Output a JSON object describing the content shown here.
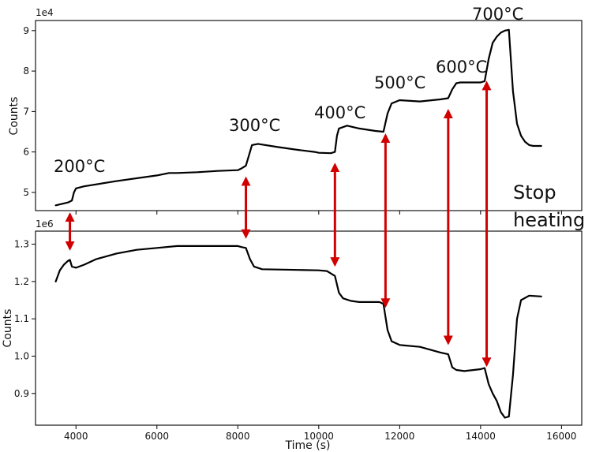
{
  "chart_data": [
    {
      "type": "line",
      "title": "",
      "xlabel": "",
      "ylabel": "Counts",
      "offset_label": "1e4",
      "xlim": [
        3000,
        16500
      ],
      "ylim": [
        4.55,
        9.25
      ],
      "yticks": [
        5,
        6,
        7,
        8,
        9
      ],
      "ytick_labels": [
        "5",
        "6",
        "7",
        "8",
        "9"
      ],
      "series": [
        {
          "x": [
            3500,
            3800,
            3900,
            3950,
            4000,
            4200,
            5000,
            6000,
            6300,
            6500,
            7000,
            7500,
            8000,
            8100,
            8200,
            8300,
            8350,
            8500,
            9000,
            9500,
            9900,
            10000,
            10300,
            10400,
            10450,
            10500,
            10700,
            11000,
            11400,
            11600,
            11700,
            11800,
            12000,
            12500,
            13000,
            13200,
            13300,
            13400,
            13500,
            14000,
            14100,
            14200,
            14300,
            14400,
            14500,
            14600,
            14700,
            14800,
            14900,
            15000,
            15100,
            15200,
            15300,
            15500
          ],
          "y": [
            4.68,
            4.75,
            4.8,
            5.0,
            5.1,
            5.15,
            5.28,
            5.42,
            5.48,
            5.48,
            5.5,
            5.53,
            5.55,
            5.6,
            5.66,
            6.0,
            6.17,
            6.2,
            6.12,
            6.05,
            6.0,
            5.98,
            5.97,
            6.0,
            6.4,
            6.58,
            6.65,
            6.58,
            6.52,
            6.5,
            6.95,
            7.2,
            7.28,
            7.25,
            7.3,
            7.33,
            7.55,
            7.7,
            7.72,
            7.72,
            7.75,
            8.3,
            8.7,
            8.85,
            8.95,
            9.0,
            9.02,
            7.5,
            6.7,
            6.4,
            6.25,
            6.17,
            6.15,
            6.15
          ]
        }
      ],
      "annotations": [
        "200°C",
        "300°C",
        "400°C",
        "500°C",
        "600°C",
        "700°C"
      ]
    },
    {
      "type": "line",
      "title": "",
      "xlabel": "Time (s)",
      "ylabel": "Counts",
      "offset_label": "1e6",
      "xlim": [
        3000,
        16500
      ],
      "ylim": [
        0.815,
        1.335
      ],
      "yticks": [
        0.9,
        1.0,
        1.1,
        1.2,
        1.3
      ],
      "ytick_labels": [
        "0.9",
        "1.0",
        "1.1",
        "1.2",
        "1.3"
      ],
      "xticks": [
        4000,
        6000,
        8000,
        10000,
        12000,
        14000,
        16000
      ],
      "xtick_labels": [
        "4000",
        "6000",
        "8000",
        "10000",
        "12000",
        "14000",
        "16000"
      ],
      "series": [
        {
          "x": [
            3500,
            3600,
            3700,
            3800,
            3850,
            3900,
            4000,
            4200,
            4500,
            5000,
            5500,
            6000,
            6500,
            7000,
            7500,
            8000,
            8100,
            8200,
            8300,
            8400,
            8600,
            9000,
            9500,
            10000,
            10200,
            10400,
            10500,
            10600,
            10800,
            11000,
            11500,
            11600,
            11700,
            11800,
            12000,
            12500,
            13000,
            13200,
            13300,
            13400,
            13600,
            14000,
            14100,
            14200,
            14300,
            14400,
            14500,
            14600,
            14700,
            14800,
            14900,
            15000,
            15200,
            15500
          ],
          "y": [
            1.2,
            1.23,
            1.245,
            1.255,
            1.258,
            1.24,
            1.237,
            1.245,
            1.26,
            1.275,
            1.285,
            1.29,
            1.295,
            1.295,
            1.295,
            1.295,
            1.292,
            1.29,
            1.26,
            1.24,
            1.233,
            1.232,
            1.231,
            1.23,
            1.228,
            1.215,
            1.17,
            1.155,
            1.148,
            1.145,
            1.145,
            1.14,
            1.07,
            1.04,
            1.03,
            1.025,
            1.01,
            1.005,
            0.97,
            0.963,
            0.96,
            0.965,
            0.968,
            0.925,
            0.9,
            0.88,
            0.85,
            0.835,
            0.838,
            0.95,
            1.1,
            1.15,
            1.162,
            1.16
          ]
        }
      ]
    }
  ],
  "stop_heating_label": "Stop\nheating",
  "arrow_positions_time": [
    3850,
    8200,
    10400,
    11650,
    13200,
    14150
  ]
}
